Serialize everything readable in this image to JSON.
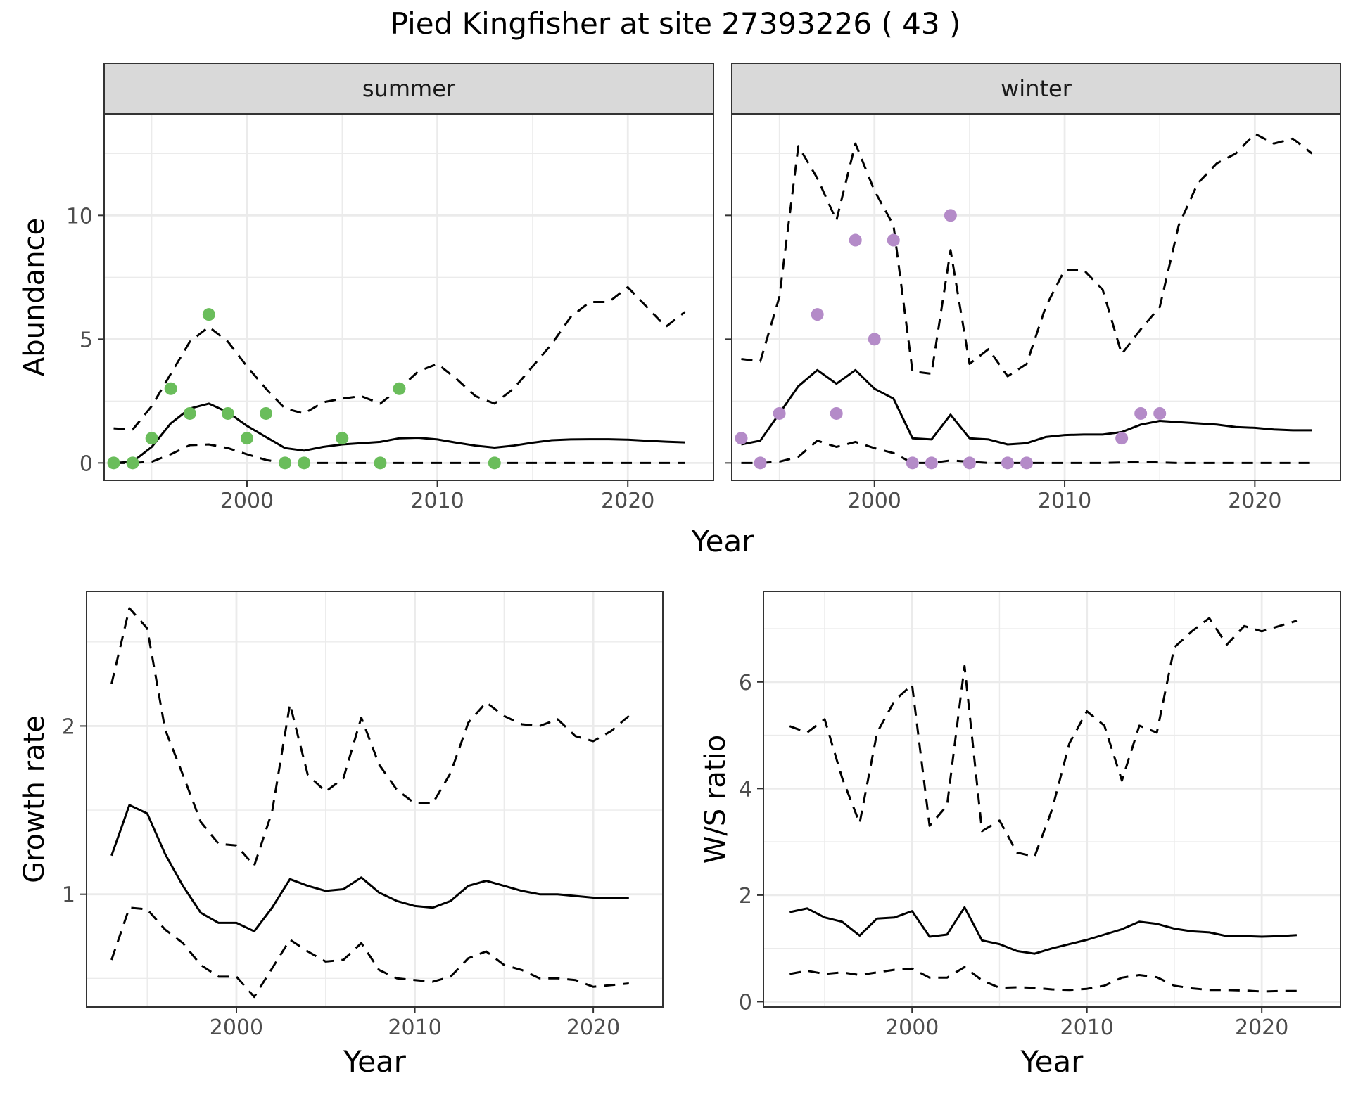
{
  "title": "Pied Kingfisher at site 27393226 ( 43 )",
  "colors": {
    "summer_points": "#6ABD5B",
    "winter_points": "#B48BC8",
    "line": "#000000",
    "strip": "#D9D9D9",
    "grid": "#EBEBEB"
  },
  "chart_data": [
    {
      "type": "line",
      "facet": "summer",
      "xlabel": "Year",
      "ylabel": "Abundance",
      "xlim": [
        1992.5,
        2024.5
      ],
      "ylim": [
        -0.7,
        14.1
      ],
      "x_ticks": [
        2000,
        2010,
        2020
      ],
      "y_ticks": [
        0,
        5,
        10
      ],
      "grid": true,
      "series": [
        {
          "style": "solid",
          "x": [
            1993,
            1994,
            1995,
            1996,
            1997,
            1998,
            1999,
            2000,
            2001,
            2002,
            2003,
            2004,
            2005,
            2006,
            2007,
            2008,
            2009,
            2010,
            2011,
            2012,
            2013,
            2014,
            2015,
            2016,
            2017,
            2018,
            2019,
            2020,
            2021,
            2022,
            2023
          ],
          "values": [
            0,
            0.05,
            0.65,
            1.6,
            2.2,
            2.4,
            2.05,
            1.5,
            1.05,
            0.6,
            0.5,
            0.65,
            0.75,
            0.8,
            0.85,
            1.0,
            1.02,
            0.95,
            0.82,
            0.7,
            0.62,
            0.7,
            0.82,
            0.92,
            0.95,
            0.96,
            0.96,
            0.94,
            0.9,
            0.86,
            0.83
          ]
        },
        {
          "style": "dashed",
          "x": [
            1993,
            1994,
            1995,
            1996,
            1997,
            1998,
            1999,
            2000,
            2001,
            2002,
            2003,
            2004,
            2005,
            2006,
            2007,
            2008,
            2009,
            2010,
            2011,
            2012,
            2013,
            2014,
            2015,
            2016,
            2017,
            2018,
            2019,
            2020,
            2021,
            2022,
            2023
          ],
          "values": [
            1.4,
            1.35,
            2.3,
            3.6,
            4.9,
            5.5,
            4.9,
            3.9,
            3.0,
            2.2,
            2.0,
            2.45,
            2.6,
            2.7,
            2.4,
            3.0,
            3.7,
            4.0,
            3.4,
            2.7,
            2.4,
            3.0,
            3.9,
            4.8,
            5.9,
            6.5,
            6.5,
            7.1,
            6.3,
            5.5,
            6.1
          ]
        },
        {
          "style": "dashed",
          "x": [
            1993,
            1994,
            1995,
            1996,
            1997,
            1998,
            1999,
            2000,
            2001,
            2002,
            2003,
            2004,
            2005,
            2006,
            2007,
            2008,
            2009,
            2010,
            2011,
            2012,
            2013,
            2014,
            2015,
            2016,
            2017,
            2018,
            2019,
            2020,
            2021,
            2022,
            2023
          ],
          "values": [
            0,
            0,
            0.05,
            0.35,
            0.72,
            0.75,
            0.6,
            0.35,
            0.12,
            0,
            0,
            0,
            0,
            0,
            0,
            0,
            0,
            0,
            0,
            0,
            0,
            0,
            0,
            0,
            0,
            0,
            0,
            0,
            0,
            0,
            0
          ]
        }
      ],
      "points": {
        "x": [
          1993,
          1994,
          1995,
          1996,
          1997,
          1998,
          1999,
          2000,
          2001,
          2002,
          2003,
          2005,
          2007,
          2008,
          2013
        ],
        "y": [
          0,
          0,
          1,
          3,
          2,
          6,
          2,
          1,
          2,
          0,
          0,
          1,
          0,
          3,
          0
        ]
      }
    },
    {
      "type": "line",
      "facet": "winter",
      "xlabel": "Year",
      "ylabel": "Abundance",
      "xlim": [
        1992.5,
        2024.5
      ],
      "ylim": [
        -0.7,
        14.1
      ],
      "x_ticks": [
        2000,
        2010,
        2020
      ],
      "y_ticks": [
        0,
        5,
        10
      ],
      "grid": true,
      "series": [
        {
          "style": "solid",
          "x": [
            1993,
            1994,
            1995,
            1996,
            1997,
            1998,
            1999,
            2000,
            2001,
            2002,
            2003,
            2004,
            2005,
            2006,
            2007,
            2008,
            2009,
            2010,
            2011,
            2012,
            2013,
            2014,
            2015,
            2016,
            2017,
            2018,
            2019,
            2020,
            2021,
            2022,
            2023
          ],
          "values": [
            0.75,
            0.9,
            2.0,
            3.1,
            3.75,
            3.2,
            3.75,
            3.0,
            2.6,
            1.0,
            0.95,
            1.95,
            1.0,
            0.95,
            0.75,
            0.8,
            1.05,
            1.13,
            1.15,
            1.15,
            1.25,
            1.55,
            1.7,
            1.65,
            1.6,
            1.55,
            1.45,
            1.42,
            1.35,
            1.32,
            1.32
          ]
        },
        {
          "style": "dashed",
          "x": [
            1993,
            1994,
            1995,
            1996,
            1997,
            1998,
            1999,
            2000,
            2001,
            2002,
            2003,
            2004,
            2005,
            2006,
            2007,
            2008,
            2009,
            2010,
            2011,
            2012,
            2013,
            2014,
            2015,
            2016,
            2017,
            2018,
            2019,
            2020,
            2021,
            2022,
            2023
          ],
          "values": [
            4.2,
            4.1,
            6.7,
            12.8,
            11.5,
            9.8,
            12.9,
            11.0,
            9.6,
            3.7,
            3.6,
            8.6,
            4.0,
            4.6,
            3.5,
            4.0,
            6.3,
            7.8,
            7.8,
            7.0,
            4.4,
            5.4,
            6.3,
            9.6,
            11.3,
            12.1,
            12.5,
            13.3,
            12.9,
            13.1,
            12.5
          ]
        },
        {
          "style": "dashed",
          "x": [
            1993,
            1994,
            1995,
            1996,
            1997,
            1998,
            1999,
            2000,
            2001,
            2002,
            2003,
            2004,
            2005,
            2006,
            2007,
            2008,
            2009,
            2010,
            2011,
            2012,
            2013,
            2014,
            2015,
            2016,
            2017,
            2018,
            2019,
            2020,
            2021,
            2022,
            2023
          ],
          "values": [
            0,
            0,
            0.05,
            0.25,
            0.9,
            0.65,
            0.85,
            0.6,
            0.4,
            0,
            0,
            0.1,
            0.05,
            0,
            0,
            0,
            0,
            0,
            0,
            0,
            0.02,
            0.05,
            0.02,
            0,
            0,
            0,
            0,
            0,
            0,
            0,
            0
          ]
        }
      ],
      "points": {
        "x": [
          1993,
          1994,
          1995,
          1997,
          1998,
          1999,
          2000,
          2001,
          2002,
          2003,
          2004,
          2005,
          2007,
          2008,
          2013,
          2014,
          2015
        ],
        "y": [
          1,
          0,
          2,
          6,
          2,
          9,
          5,
          9,
          0,
          0,
          10,
          0,
          0,
          0,
          1,
          2,
          2
        ]
      }
    },
    {
      "type": "line",
      "xlabel": "Year",
      "ylabel": "Growth rate",
      "xlim": [
        1991.6,
        2023.9
      ],
      "ylim": [
        0.33,
        2.8
      ],
      "x_ticks": [
        2000,
        2010,
        2020
      ],
      "y_ticks": [
        1,
        2
      ],
      "grid": true,
      "series": [
        {
          "style": "solid",
          "x": [
            1993,
            1994,
            1995,
            1996,
            1997,
            1998,
            1999,
            2000,
            2001,
            2002,
            2003,
            2004,
            2005,
            2006,
            2007,
            2008,
            2009,
            2010,
            2011,
            2012,
            2013,
            2014,
            2015,
            2016,
            2017,
            2018,
            2019,
            2020,
            2021,
            2022
          ],
          "values": [
            1.23,
            1.53,
            1.48,
            1.24,
            1.05,
            0.89,
            0.83,
            0.83,
            0.78,
            0.92,
            1.09,
            1.05,
            1.02,
            1.03,
            1.1,
            1.01,
            0.96,
            0.93,
            0.92,
            0.96,
            1.05,
            1.08,
            1.05,
            1.02,
            1.0,
            1.0,
            0.99,
            0.98,
            0.98,
            0.98
          ]
        },
        {
          "style": "dashed",
          "x": [
            1993,
            1994,
            1995,
            1996,
            1997,
            1998,
            1999,
            2000,
            2001,
            2002,
            2003,
            2004,
            2005,
            2006,
            2007,
            2008,
            2009,
            2010,
            2011,
            2012,
            2013,
            2014,
            2015,
            2016,
            2017,
            2018,
            2019,
            2020,
            2021,
            2022
          ],
          "values": [
            2.25,
            2.7,
            2.58,
            1.98,
            1.71,
            1.43,
            1.3,
            1.29,
            1.17,
            1.49,
            2.13,
            1.71,
            1.61,
            1.69,
            2.05,
            1.77,
            1.62,
            1.54,
            1.54,
            1.72,
            2.02,
            2.14,
            2.06,
            2.01,
            2.0,
            2.04,
            1.94,
            1.91,
            1.97,
            2.06
          ]
        },
        {
          "style": "dashed",
          "x": [
            1993,
            1994,
            1995,
            1996,
            1997,
            1998,
            1999,
            2000,
            2001,
            2002,
            2003,
            2004,
            2005,
            2006,
            2007,
            2008,
            2009,
            2010,
            2011,
            2012,
            2013,
            2014,
            2015,
            2016,
            2017,
            2018,
            2019,
            2020,
            2021,
            2022
          ],
          "values": [
            0.61,
            0.92,
            0.91,
            0.79,
            0.71,
            0.58,
            0.51,
            0.51,
            0.39,
            0.56,
            0.73,
            0.66,
            0.6,
            0.61,
            0.71,
            0.55,
            0.5,
            0.49,
            0.48,
            0.51,
            0.62,
            0.66,
            0.58,
            0.55,
            0.5,
            0.5,
            0.49,
            0.45,
            0.46,
            0.47
          ]
        }
      ]
    },
    {
      "type": "line",
      "xlabel": "Year",
      "ylabel": "W/S ratio",
      "xlim": [
        1991.5,
        2024.5
      ],
      "ylim": [
        -0.1,
        7.7
      ],
      "x_ticks": [
        2000,
        2010,
        2020
      ],
      "y_ticks": [
        0,
        2,
        4,
        6
      ],
      "grid": true,
      "series": [
        {
          "style": "solid",
          "x": [
            1993,
            1994,
            1995,
            1996,
            1997,
            1998,
            1999,
            2000,
            2001,
            2002,
            2003,
            2004,
            2005,
            2006,
            2007,
            2008,
            2009,
            2010,
            2011,
            2012,
            2013,
            2014,
            2015,
            2016,
            2017,
            2018,
            2019,
            2020,
            2021,
            2022
          ],
          "values": [
            1.68,
            1.75,
            1.58,
            1.5,
            1.24,
            1.56,
            1.58,
            1.7,
            1.22,
            1.26,
            1.77,
            1.15,
            1.08,
            0.95,
            0.9,
            1.0,
            1.08,
            1.16,
            1.26,
            1.36,
            1.5,
            1.46,
            1.37,
            1.32,
            1.3,
            1.23,
            1.23,
            1.22,
            1.23,
            1.25
          ]
        },
        {
          "style": "dashed",
          "x": [
            1993,
            1994,
            1995,
            1996,
            1997,
            1998,
            1999,
            2000,
            2001,
            2002,
            2003,
            2004,
            2005,
            2006,
            2007,
            2008,
            2009,
            2010,
            2011,
            2012,
            2013,
            2014,
            2015,
            2016,
            2017,
            2018,
            2019,
            2020,
            2021,
            2022
          ],
          "values": [
            5.17,
            5.05,
            5.3,
            4.2,
            3.35,
            5.05,
            5.65,
            5.95,
            3.3,
            3.68,
            6.3,
            3.2,
            3.4,
            2.8,
            2.72,
            3.6,
            4.85,
            5.45,
            5.18,
            4.15,
            5.18,
            5.05,
            6.65,
            6.95,
            7.2,
            6.7,
            7.05,
            6.95,
            7.05,
            7.15
          ]
        },
        {
          "style": "dashed",
          "x": [
            1993,
            1994,
            1995,
            1996,
            1997,
            1998,
            1999,
            2000,
            2001,
            2002,
            2003,
            2004,
            2005,
            2006,
            2007,
            2008,
            2009,
            2010,
            2011,
            2012,
            2013,
            2014,
            2015,
            2016,
            2017,
            2018,
            2019,
            2020,
            2021,
            2022
          ],
          "values": [
            0.52,
            0.58,
            0.52,
            0.55,
            0.5,
            0.55,
            0.6,
            0.62,
            0.45,
            0.45,
            0.65,
            0.4,
            0.26,
            0.27,
            0.26,
            0.23,
            0.22,
            0.24,
            0.3,
            0.45,
            0.5,
            0.46,
            0.3,
            0.25,
            0.22,
            0.22,
            0.21,
            0.19,
            0.2,
            0.2
          ]
        }
      ]
    }
  ]
}
